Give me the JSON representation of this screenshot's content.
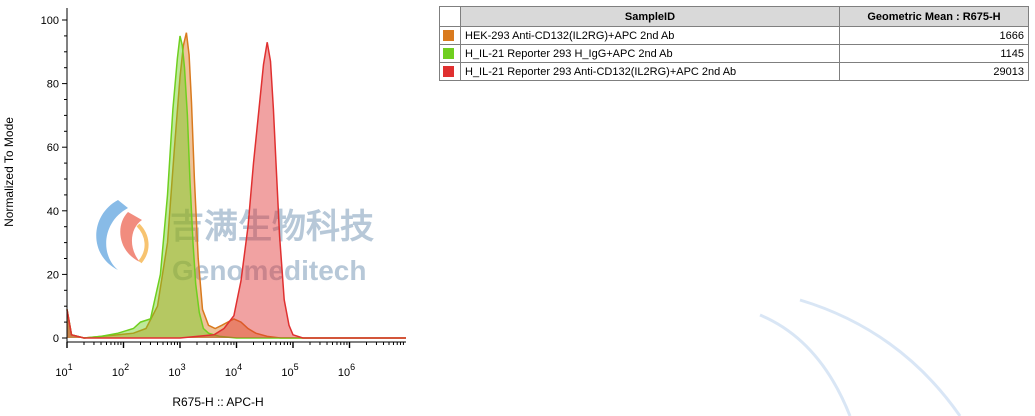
{
  "chart_data": {
    "type": "area",
    "xlabel": "R675-H :: APC-H",
    "ylabel": "Normalized To Mode",
    "x_scale": "log",
    "xlim": [
      10,
      10000000
    ],
    "ylim": [
      0,
      100
    ],
    "y_ticks": [
      "0",
      "20",
      "40",
      "60",
      "80",
      "100"
    ],
    "x_ticks": [
      {
        "base": "10",
        "exp": "1",
        "value": 10
      },
      {
        "base": "10",
        "exp": "2",
        "value": 100
      },
      {
        "base": "10",
        "exp": "3",
        "value": 1000
      },
      {
        "base": "10",
        "exp": "4",
        "value": 10000
      },
      {
        "base": "10",
        "exp": "5",
        "value": 100000
      },
      {
        "base": "10",
        "exp": "6",
        "value": 1000000
      }
    ],
    "series": [
      {
        "name": "HEK-293 Anti-CD132(IL2RG)+APC 2nd Ab",
        "color": "#d97a1e",
        "x": [
          10,
          12,
          20,
          40,
          80,
          150,
          250,
          400,
          600,
          800,
          1000,
          1150,
          1300,
          1450,
          1600,
          1800,
          2100,
          2500,
          3200,
          4200,
          5500,
          7000,
          9000,
          12000,
          16000,
          22000,
          35000,
          60000,
          100000,
          1000000,
          10000000
        ],
        "y": [
          9,
          1,
          0,
          0.5,
          1,
          1.5,
          3,
          10,
          30,
          60,
          82,
          92,
          96,
          89,
          74,
          50,
          25,
          9,
          4,
          3,
          4,
          5,
          6,
          5,
          3,
          1.5,
          0.5,
          0,
          0,
          0,
          0
        ]
      },
      {
        "name": "H_IL-21 Reporter 293 H_IgG+APC 2nd Ab",
        "color": "#6fcf1f",
        "x": [
          10,
          12,
          20,
          40,
          80,
          150,
          200,
          300,
          450,
          600,
          750,
          900,
          1000,
          1100,
          1200,
          1350,
          1500,
          1700,
          1900,
          2200,
          2600,
          3200,
          5000,
          10000,
          100000,
          10000000
        ],
        "y": [
          9,
          1,
          0,
          0.5,
          1.5,
          3,
          5,
          6,
          20,
          45,
          72,
          88,
          95,
          92,
          85,
          70,
          50,
          30,
          17,
          8,
          3,
          1.5,
          0.5,
          0,
          0,
          0
        ]
      },
      {
        "name": "H_IL-21 Reporter 293 Anti-CD132(IL2RG)+APC 2nd Ab",
        "color": "#e03030",
        "x": [
          10,
          12,
          20,
          100,
          1000,
          2000,
          4000,
          6000,
          9000,
          12000,
          16000,
          20000,
          25000,
          30000,
          35000,
          40000,
          45000,
          50000,
          58000,
          70000,
          85000,
          100000,
          150000,
          1000000,
          10000000
        ],
        "y": [
          9,
          1,
          0,
          0,
          0,
          0.5,
          1,
          3,
          7,
          18,
          35,
          55,
          72,
          86,
          93,
          87,
          72,
          55,
          32,
          12,
          4,
          1,
          0,
          0,
          0
        ]
      }
    ],
    "table": {
      "headers": [
        "SampleID",
        "Geometric Mean : R675-H"
      ],
      "rows": [
        {
          "sample": "HEK-293 Anti-CD132(IL2RG)+APC 2nd Ab",
          "value": "1666",
          "color": "#d97a1e"
        },
        {
          "sample": "H_IL-21 Reporter 293 H_IgG+APC 2nd Ab",
          "value": "1145",
          "color": "#6fcf1f"
        },
        {
          "sample": "H_IL-21 Reporter 293 Anti-CD132(IL2RG)+APC 2nd Ab",
          "value": "29013",
          "color": "#e03030"
        }
      ]
    }
  },
  "watermark": {
    "chinese": "吉满生物科技",
    "english": "Genomeditech"
  }
}
